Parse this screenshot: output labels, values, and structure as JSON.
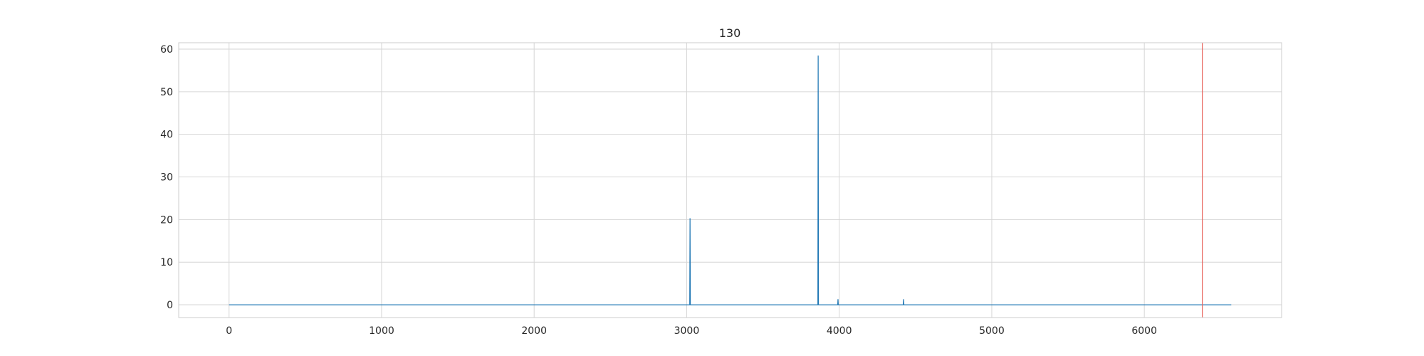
{
  "chart_data": {
    "type": "line",
    "title": "130",
    "xlabel": "",
    "ylabel": "",
    "xlim": [
      -330,
      6900
    ],
    "ylim": [
      -3,
      61.5
    ],
    "xticks": [
      0,
      1000,
      2000,
      3000,
      4000,
      5000,
      6000
    ],
    "yticks": [
      0,
      10,
      20,
      30,
      40,
      50,
      60
    ],
    "grid": true,
    "legend": "none",
    "series": [
      {
        "color": "#1f77b4",
        "points": [
          [
            0,
            0
          ],
          [
            3020,
            0
          ],
          [
            3022,
            20.3
          ],
          [
            3024,
            0
          ],
          [
            3860,
            0
          ],
          [
            3862,
            58.5
          ],
          [
            3864,
            0
          ],
          [
            3990,
            0
          ],
          [
            3992,
            1.3
          ],
          [
            3994,
            0
          ],
          [
            4420,
            0
          ],
          [
            4422,
            1.3
          ],
          [
            4424,
            0
          ],
          [
            6570,
            0
          ]
        ]
      }
    ],
    "vlines": [
      {
        "x": 6380,
        "color": "#e8615a"
      }
    ]
  }
}
